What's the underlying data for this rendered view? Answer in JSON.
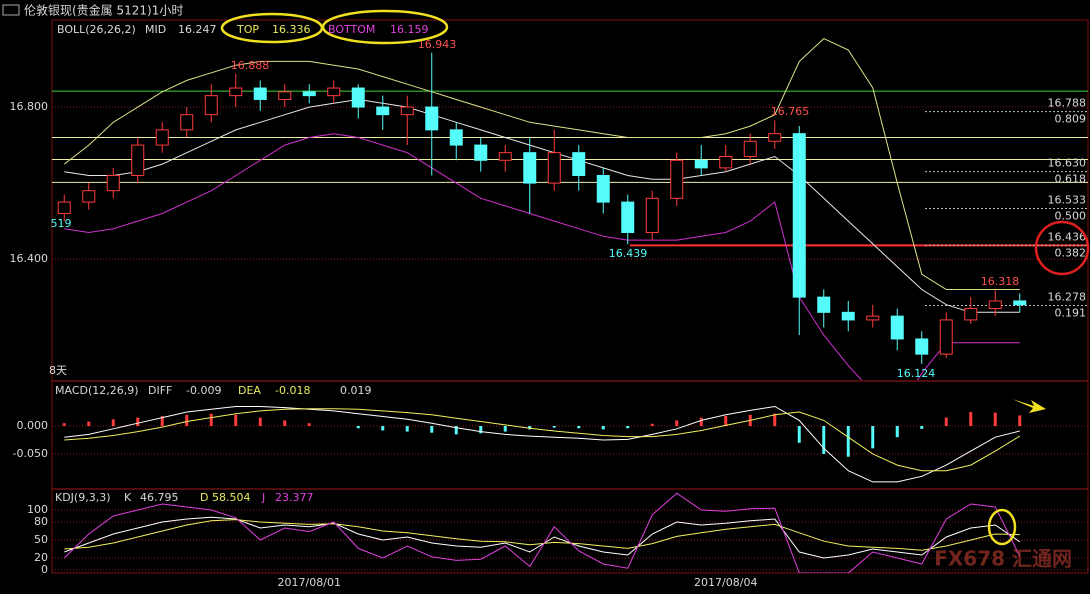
{
  "watermark": "FX678 汇通网",
  "chart_data": [
    {
      "type": "candlestick",
      "title": "伦敦银现(贵金属 5121)1小时",
      "indicator": {
        "name": "BOLL(26,26,2)",
        "mid_label": "MID",
        "mid": 16.247,
        "top_label": "TOP",
        "top": 16.336,
        "bottom_label": "BOTTOM",
        "bottom": 16.159
      },
      "categories": [
        null,
        null,
        null,
        null,
        null,
        null,
        null,
        null,
        null,
        null,
        "2017/08/01",
        null,
        null,
        null,
        null,
        null,
        null,
        null,
        null,
        null,
        null,
        null,
        null,
        null,
        null,
        null,
        null,
        "2017/08/04",
        null,
        null,
        null,
        null,
        null,
        null,
        null,
        null,
        null,
        null,
        null,
        null
      ],
      "open": [
        16.52,
        16.55,
        16.58,
        16.62,
        16.7,
        16.74,
        16.78,
        16.83,
        16.85,
        16.82,
        16.84,
        16.83,
        16.85,
        16.8,
        16.78,
        16.8,
        16.74,
        16.7,
        16.66,
        16.68,
        16.6,
        16.68,
        16.62,
        16.55,
        16.47,
        16.56,
        16.66,
        16.64,
        16.67,
        16.71,
        16.73,
        16.3,
        16.26,
        16.24,
        16.25,
        16.19,
        16.15,
        16.24,
        16.27,
        16.29
      ],
      "high": [
        16.57,
        16.6,
        16.64,
        16.72,
        16.76,
        16.8,
        16.86,
        16.888,
        16.87,
        16.86,
        16.86,
        16.87,
        16.86,
        16.83,
        16.83,
        16.943,
        16.76,
        16.72,
        16.7,
        16.72,
        16.74,
        16.7,
        16.64,
        16.57,
        16.58,
        16.68,
        16.7,
        16.7,
        16.73,
        16.765,
        16.75,
        16.32,
        16.29,
        16.28,
        16.27,
        16.21,
        16.26,
        16.3,
        16.318,
        16.31
      ],
      "low": [
        16.5,
        16.53,
        16.56,
        16.6,
        16.68,
        16.72,
        16.76,
        16.8,
        16.79,
        16.8,
        16.81,
        16.81,
        16.77,
        16.74,
        16.7,
        16.62,
        16.66,
        16.63,
        16.63,
        16.52,
        16.58,
        16.58,
        16.52,
        16.439,
        16.45,
        16.54,
        16.62,
        16.63,
        16.65,
        16.69,
        16.2,
        16.22,
        16.21,
        16.22,
        16.16,
        16.124,
        16.14,
        16.23,
        16.25,
        16.26
      ],
      "close": [
        16.55,
        16.58,
        16.62,
        16.7,
        16.74,
        16.78,
        16.83,
        16.85,
        16.82,
        16.84,
        16.83,
        16.85,
        16.8,
        16.78,
        16.8,
        16.74,
        16.7,
        16.66,
        16.68,
        16.6,
        16.68,
        16.62,
        16.55,
        16.47,
        16.56,
        16.66,
        16.64,
        16.67,
        16.71,
        16.73,
        16.3,
        16.26,
        16.24,
        16.25,
        16.19,
        16.15,
        16.24,
        16.27,
        16.29,
        16.28
      ],
      "bands": {
        "upper": [
          16.65,
          16.7,
          16.76,
          16.8,
          16.84,
          16.87,
          16.89,
          16.91,
          16.92,
          16.92,
          16.92,
          16.91,
          16.9,
          16.88,
          16.86,
          16.84,
          16.82,
          16.8,
          16.78,
          16.76,
          16.75,
          16.74,
          16.73,
          16.72,
          16.72,
          16.72,
          16.72,
          16.73,
          16.75,
          16.78,
          16.92,
          16.98,
          16.95,
          16.85,
          16.6,
          16.36,
          16.32,
          16.32,
          16.32,
          16.32
        ],
        "mid": [
          16.63,
          16.62,
          16.62,
          16.63,
          16.65,
          16.68,
          16.71,
          16.74,
          16.76,
          16.78,
          16.8,
          16.81,
          16.82,
          16.81,
          16.8,
          16.78,
          16.76,
          16.74,
          16.72,
          16.7,
          16.68,
          16.66,
          16.64,
          16.62,
          16.61,
          16.61,
          16.62,
          16.63,
          16.65,
          16.67,
          16.62,
          16.56,
          16.5,
          16.44,
          16.38,
          16.32,
          16.28,
          16.26,
          16.26,
          16.26
        ],
        "lower": [
          16.48,
          16.47,
          16.48,
          16.5,
          16.52,
          16.55,
          16.58,
          16.62,
          16.66,
          16.7,
          16.72,
          16.73,
          16.72,
          16.7,
          16.68,
          16.64,
          16.6,
          16.56,
          16.54,
          16.52,
          16.5,
          16.48,
          16.46,
          16.45,
          16.45,
          16.45,
          16.46,
          16.47,
          16.5,
          16.55,
          16.3,
          16.2,
          16.12,
          16.05,
          16.0,
          16.1,
          16.18,
          16.18,
          16.18,
          16.18
        ]
      },
      "band_colors": {
        "upper": "#e0e08a",
        "mid": "#e8e8e8",
        "lower": "#d030d0"
      },
      "up_color": "#ff3c3c",
      "down_color": "#54fcfc",
      "ylim": [
        16.082,
        17.029
      ],
      "yticks": [
        {
          "value": 16.8,
          "label": "16.800"
        },
        {
          "value": 16.4,
          "label": "16.400"
        }
      ],
      "lines": [
        {
          "value": 16.842,
          "color": "#3ad13a"
        },
        {
          "value": 16.72,
          "color": "#f0f0a0"
        },
        {
          "value": 16.662,
          "color": "#f0f0a0"
        },
        {
          "value": 16.602,
          "color": "#f0f0a0"
        },
        {
          "value": 16.436,
          "color": "#ff3030"
        }
      ],
      "levels": [
        {
          "value": 16.788,
          "label": "16.788",
          "ratio": "0.809"
        },
        {
          "value": 16.63,
          "label": "16.630",
          "ratio": "0.618"
        },
        {
          "value": 16.533,
          "label": "16.533",
          "ratio": "0.500"
        },
        {
          "value": 16.436,
          "label": "16.436",
          "ratio": "0.382"
        },
        {
          "value": 16.278,
          "label": "16.278",
          "ratio": "0.191"
        }
      ],
      "annotations": [
        "16.888",
        "16.943",
        "16.765",
        "16.439",
        "16.124",
        "16.318",
        "519",
        "8天"
      ]
    },
    {
      "type": "macd",
      "title": "MACD(12,26,9)",
      "diff_label": "DIFF",
      "diff": -0.009,
      "dea_label": "DEA",
      "dea": -0.018,
      "macd": 0.019,
      "ylim": [
        -0.111,
        0.077
      ],
      "yticks": [
        {
          "value": 0,
          "label": "0.000"
        },
        {
          "value": -0.05,
          "label": "-0.050"
        }
      ],
      "histogram": [
        0.005,
        0.008,
        0.012,
        0.015,
        0.018,
        0.02,
        0.022,
        0.02,
        0.015,
        0.01,
        0.005,
        0,
        -0.004,
        -0.008,
        -0.01,
        -0.012,
        -0.015,
        -0.013,
        -0.01,
        -0.006,
        -0.003,
        -0.004,
        -0.006,
        -0.004,
        0.004,
        0.01,
        0.015,
        0.018,
        0.02,
        0.022,
        -0.03,
        -0.05,
        -0.055,
        -0.04,
        -0.02,
        -0.005,
        0.015,
        0.025,
        0.024,
        0.019
      ],
      "series": [
        {
          "color": "#ffffff",
          "values": [
            -0.02,
            -0.015,
            -0.005,
            0.005,
            0.015,
            0.025,
            0.03,
            0.035,
            0.035,
            0.033,
            0.03,
            0.027,
            0.022,
            0.017,
            0.012,
            0.005,
            -0.003,
            -0.01,
            -0.015,
            -0.018,
            -0.02,
            -0.022,
            -0.025,
            -0.024,
            -0.015,
            -0.005,
            0.01,
            0.02,
            0.028,
            0.035,
            0.01,
            -0.04,
            -0.08,
            -0.1,
            -0.1,
            -0.09,
            -0.07,
            -0.045,
            -0.02,
            -0.009
          ]
        },
        {
          "color": "#f0f060",
          "values": [
            -0.025,
            -0.022,
            -0.017,
            -0.01,
            -0.002,
            0.008,
            0.015,
            0.022,
            0.027,
            0.03,
            0.031,
            0.031,
            0.03,
            0.027,
            0.024,
            0.02,
            0.014,
            0.008,
            0.002,
            -0.004,
            -0.009,
            -0.013,
            -0.017,
            -0.019,
            -0.019,
            -0.015,
            -0.008,
            0.001,
            0.01,
            0.02,
            0.025,
            0.01,
            -0.02,
            -0.05,
            -0.07,
            -0.08,
            -0.08,
            -0.07,
            -0.045,
            -0.018
          ]
        }
      ]
    },
    {
      "type": "kdj",
      "title": "KDJ(9,3,3)",
      "k_label": "K",
      "k": 46.795,
      "d_label": "D",
      "d": 58.504,
      "j_label": "J",
      "j": 23.377,
      "ylim": [
        -5,
        131.7
      ],
      "yticks": [
        100,
        80,
        50,
        20,
        0
      ],
      "series": [
        {
          "color": "#ffffff",
          "values": [
            30,
            45,
            60,
            70,
            80,
            85,
            88,
            85,
            70,
            75,
            72,
            78,
            60,
            50,
            55,
            45,
            40,
            38,
            45,
            30,
            55,
            40,
            30,
            25,
            60,
            80,
            75,
            78,
            82,
            85,
            30,
            20,
            25,
            35,
            30,
            25,
            55,
            70,
            75,
            47
          ]
        },
        {
          "color": "#f0f060",
          "values": [
            35,
            38,
            45,
            55,
            65,
            75,
            82,
            84,
            80,
            78,
            76,
            77,
            72,
            65,
            62,
            57,
            52,
            48,
            47,
            42,
            46,
            44,
            40,
            36,
            44,
            56,
            62,
            68,
            72,
            76,
            62,
            48,
            40,
            38,
            36,
            33,
            40,
            50,
            60,
            59
          ]
        },
        {
          "color": "#e040e0",
          "values": [
            20,
            60,
            90,
            100,
            110,
            105,
            100,
            87,
            50,
            70,
            64,
            80,
            36,
            20,
            40,
            22,
            16,
            18,
            40,
            6,
            72,
            32,
            10,
            3,
            92,
            128,
            100,
            98,
            102,
            103,
            -5,
            -5,
            -5,
            30,
            20,
            10,
            85,
            110,
            105,
            23
          ]
        }
      ]
    }
  ]
}
